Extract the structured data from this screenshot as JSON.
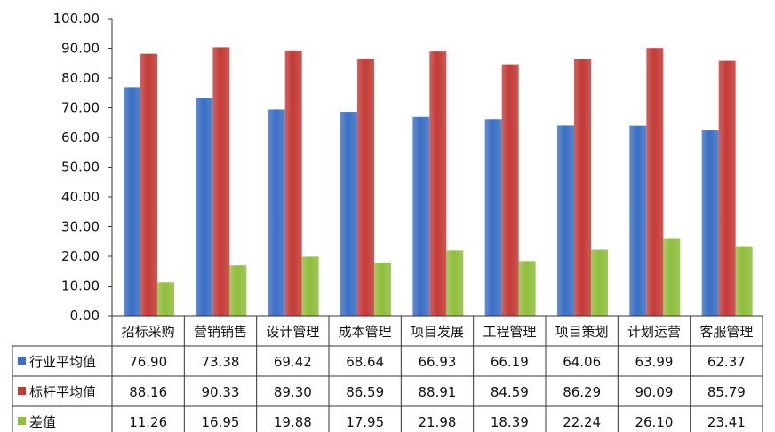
{
  "chart_data": {
    "type": "bar",
    "categories": [
      "招标采购",
      "营销销售",
      "设计管理",
      "成本管理",
      "项目发展",
      "工程管理",
      "项目策划",
      "计划运营",
      "客服管理"
    ],
    "series": [
      {
        "name": "行业平均值",
        "color": "#3a6fc4",
        "values": [
          76.9,
          73.38,
          69.42,
          68.64,
          66.93,
          66.19,
          64.06,
          63.99,
          62.37
        ]
      },
      {
        "name": "标杆平均值",
        "color": "#c43a36",
        "values": [
          88.16,
          90.33,
          89.3,
          86.59,
          88.91,
          84.59,
          86.29,
          90.09,
          85.79
        ]
      },
      {
        "name": "差值",
        "color": "#8fbe3c",
        "values": [
          11.26,
          16.95,
          19.88,
          17.95,
          21.98,
          18.39,
          22.24,
          26.1,
          23.41
        ]
      }
    ],
    "ylim": [
      0,
      100
    ],
    "yticks": [
      "0.00",
      "10.00",
      "20.00",
      "30.00",
      "40.00",
      "50.00",
      "60.00",
      "70.00",
      "80.00",
      "90.00",
      "100.00"
    ],
    "value_format_decimals": 2,
    "grid": false,
    "legend": "data-table"
  }
}
